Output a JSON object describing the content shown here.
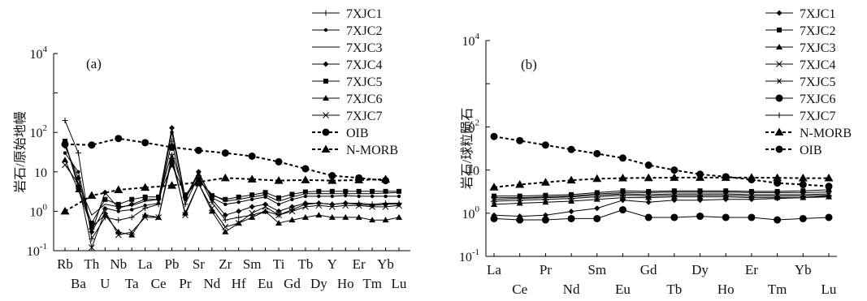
{
  "chart_data": [
    {
      "type": "line",
      "panel_label": "(a)",
      "ylabel": "岩石/原始地幔",
      "yscale": "log",
      "ylim": [
        0.1,
        10000
      ],
      "y_tick_labels": [
        {
          "base": "10",
          "exp": "4"
        },
        {
          "base": "10",
          "exp": "2"
        },
        {
          "base": "10",
          "exp": ""
        },
        {
          "base": "10",
          "exp": "0"
        },
        {
          "base": "10",
          "exp": "-1"
        }
      ],
      "categories": [
        "Rb",
        "Ba",
        "Th",
        "U",
        "Nb",
        "Ta",
        "La",
        "Ce",
        "Pb",
        "Pr",
        "Sr",
        "Nd",
        "Zr",
        "Hf",
        "Sm",
        "Eu",
        "Ti",
        "Gd",
        "Tb",
        "Dy",
        "Y",
        "Ho",
        "Er",
        "Tm",
        "Yb",
        "Lu"
      ],
      "series": [
        {
          "name": "7XJC1",
          "values": [
            200,
            30,
            0.2,
            0.7,
            0.6,
            0.7,
            1.2,
            1.5,
            60,
            1.5,
            8,
            1.7,
            0.6,
            0.7,
            0.8,
            1,
            0.8,
            1.1,
            1.5,
            1.6,
            1.5,
            1.6,
            1.6,
            1.5,
            1.6,
            1.6
          ]
        },
        {
          "name": "7XJC2",
          "values": [
            30,
            10,
            0.3,
            1.2,
            1,
            1.1,
            1.4,
            1.6,
            100,
            2,
            9,
            2.2,
            1.5,
            1.7,
            2,
            2.3,
            1.5,
            2,
            2.4,
            2.4,
            2.4,
            2.5,
            2.4,
            2.4,
            2.4,
            2.4
          ]
        },
        {
          "name": "7XJC3",
          "values": [
            55,
            5,
            0.8,
            1.5,
            1.3,
            1.4,
            1.8,
            2,
            30,
            2.5,
            6,
            2.7,
            1.8,
            2,
            2.3,
            2.6,
            1.8,
            2.3,
            2.8,
            2.8,
            2.8,
            2.8,
            2.8,
            2.8,
            2.9,
            3
          ]
        },
        {
          "name": "7XJC4",
          "values": [
            45,
            7,
            0.3,
            3,
            1.2,
            1.5,
            2,
            2,
            130,
            2.2,
            10,
            2,
            0.8,
            1,
            1.3,
            1.5,
            1,
            1.3,
            1.6,
            1.6,
            1.5,
            1.6,
            1.5,
            1.4,
            1.5,
            1.5
          ]
        },
        {
          "name": "7XJC5",
          "values": [
            60,
            4,
            0.5,
            2,
            1.5,
            2,
            2.3,
            2.3,
            15,
            2.6,
            6.5,
            2.5,
            2,
            2.3,
            2.6,
            3,
            2.2,
            2.7,
            3.1,
            3.2,
            3.2,
            3.2,
            3.2,
            3.2,
            3.2,
            3.2
          ]
        },
        {
          "name": "7XJC6",
          "values": [
            20,
            3.5,
            0.4,
            0.8,
            0.3,
            0.25,
            0.8,
            0.7,
            20,
            0.9,
            5,
            1,
            0.3,
            0.5,
            0.7,
            1,
            0.5,
            0.6,
            0.7,
            0.8,
            0.7,
            0.7,
            0.7,
            0.6,
            0.6,
            0.7
          ]
        },
        {
          "name": "7XJC7",
          "values": [
            15,
            5,
            0.12,
            1,
            0.25,
            0.3,
            0.7,
            0.7,
            25,
            0.8,
            5,
            1.2,
            0.4,
            0.5,
            0.9,
            1.3,
            0.8,
            1,
            1.3,
            1.4,
            1.3,
            1.4,
            1.4,
            1.3,
            1.3,
            1.4
          ]
        },
        {
          "name": "OIB",
          "values": [
            50,
            null,
            48,
            null,
            70,
            null,
            55,
            null,
            42,
            null,
            35,
            null,
            30,
            null,
            25,
            null,
            18,
            null,
            12,
            null,
            8,
            null,
            7,
            null,
            6,
            null
          ]
        },
        {
          "name": "N-MORB",
          "values": [
            1,
            null,
            2.5,
            null,
            3.5,
            null,
            4,
            null,
            4.5,
            null,
            5.5,
            null,
            7,
            null,
            6.5,
            null,
            6,
            null,
            6.2,
            null,
            6,
            null,
            6.2,
            null,
            6.5,
            null
          ]
        }
      ]
    },
    {
      "type": "line",
      "panel_label": "(b)",
      "ylabel": "岩石/球粒陨石",
      "yscale": "log",
      "ylim": [
        0.1,
        10000
      ],
      "y_tick_labels": [
        {
          "base": "10",
          "exp": "4"
        },
        {
          "base": "10",
          "exp": "2"
        },
        {
          "base": "10",
          "exp": ""
        },
        {
          "base": "10",
          "exp": "0"
        },
        {
          "base": "10",
          "exp": "-1"
        }
      ],
      "categories": [
        "La",
        "Ce",
        "Pr",
        "Nd",
        "Sm",
        "Eu",
        "Gd",
        "Tb",
        "Dy",
        "Ho",
        "Er",
        "Tm",
        "Yb",
        "Lu"
      ],
      "series": [
        {
          "name": "7XJC1",
          "values": [
            0.9,
            0.85,
            0.9,
            1.1,
            1.3,
            2,
            1.8,
            2,
            2,
            2.1,
            2.1,
            2.2,
            2.3,
            2.5
          ]
        },
        {
          "name": "7XJC2",
          "values": [
            2.5,
            2.5,
            2.6,
            2.7,
            3,
            3.3,
            3.2,
            3.3,
            3.3,
            3.3,
            3.2,
            3.2,
            3.3,
            3.5
          ]
        },
        {
          "name": "7XJC3",
          "values": [
            1.6,
            1.7,
            1.8,
            1.9,
            2.1,
            2.3,
            2.3,
            2.4,
            2.4,
            2.4,
            2.3,
            2.3,
            2.3,
            2.4
          ]
        },
        {
          "name": "7XJC4",
          "values": [
            2.1,
            2.2,
            2.3,
            2.4,
            2.6,
            2.8,
            2.7,
            2.8,
            2.8,
            2.8,
            2.7,
            2.7,
            2.7,
            2.8
          ]
        },
        {
          "name": "7XJC5",
          "values": [
            1.9,
            2,
            2.1,
            2.2,
            2.4,
            2.6,
            2.5,
            2.6,
            2.6,
            2.6,
            2.5,
            2.5,
            2.5,
            2.6
          ]
        },
        {
          "name": "7XJC6",
          "values": [
            0.75,
            0.7,
            0.7,
            0.75,
            0.75,
            1.2,
            0.8,
            0.8,
            0.85,
            0.8,
            0.8,
            0.7,
            0.75,
            0.8
          ]
        },
        {
          "name": "7XJC7",
          "values": [
            2.3,
            2.3,
            2.4,
            2.5,
            2.8,
            3,
            3,
            3.1,
            3.1,
            3.1,
            3,
            3,
            3,
            3.1
          ]
        },
        {
          "name": "N-MORB",
          "values": [
            4,
            4.6,
            5.2,
            5.8,
            6.3,
            6.5,
            6.6,
            6.7,
            6.7,
            6.7,
            6.7,
            6.6,
            6.5,
            6.5
          ]
        },
        {
          "name": "OIB",
          "values": [
            60,
            48,
            38,
            30,
            24,
            19,
            13,
            10,
            8,
            7,
            6,
            5,
            4.6,
            4.2
          ]
        }
      ]
    }
  ]
}
